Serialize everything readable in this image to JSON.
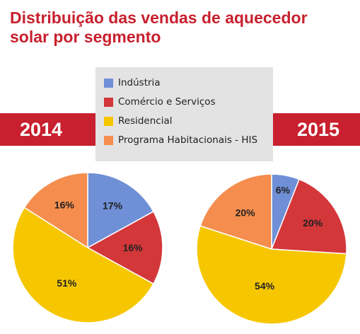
{
  "title": "Distribuição das vendas de aquecedor solar por segmento",
  "colors": {
    "accent": "#c8202e",
    "industria": "#6f8fd6",
    "comercio": "#d3373a",
    "residencial": "#f6c700",
    "programa": "#f48d4d"
  },
  "legend": [
    {
      "label": "Indústria",
      "color": "#6f8fd6"
    },
    {
      "label": "Comércio e Serviços",
      "color": "#d3373a"
    },
    {
      "label": "Residencial",
      "color": "#f6c700"
    },
    {
      "label": "Programa Habitacionais - HIS",
      "color": "#f48d4d"
    }
  ],
  "chart_data": [
    {
      "type": "pie",
      "title": "2014",
      "categories": [
        "Indústria",
        "Comércio e Serviços",
        "Residencial",
        "Programa Habitacionais - HIS"
      ],
      "values": [
        17,
        16,
        51,
        16
      ],
      "labels": [
        "17%",
        "16%",
        "51%",
        "16%"
      ]
    },
    {
      "type": "pie",
      "title": "2015",
      "categories": [
        "Indústria",
        "Comércio e Serviços",
        "Residencial",
        "Programa Habitacionais - HIS"
      ],
      "values": [
        6,
        20,
        54,
        20
      ],
      "labels": [
        "6%",
        "20%",
        "54%",
        "20%"
      ]
    }
  ]
}
